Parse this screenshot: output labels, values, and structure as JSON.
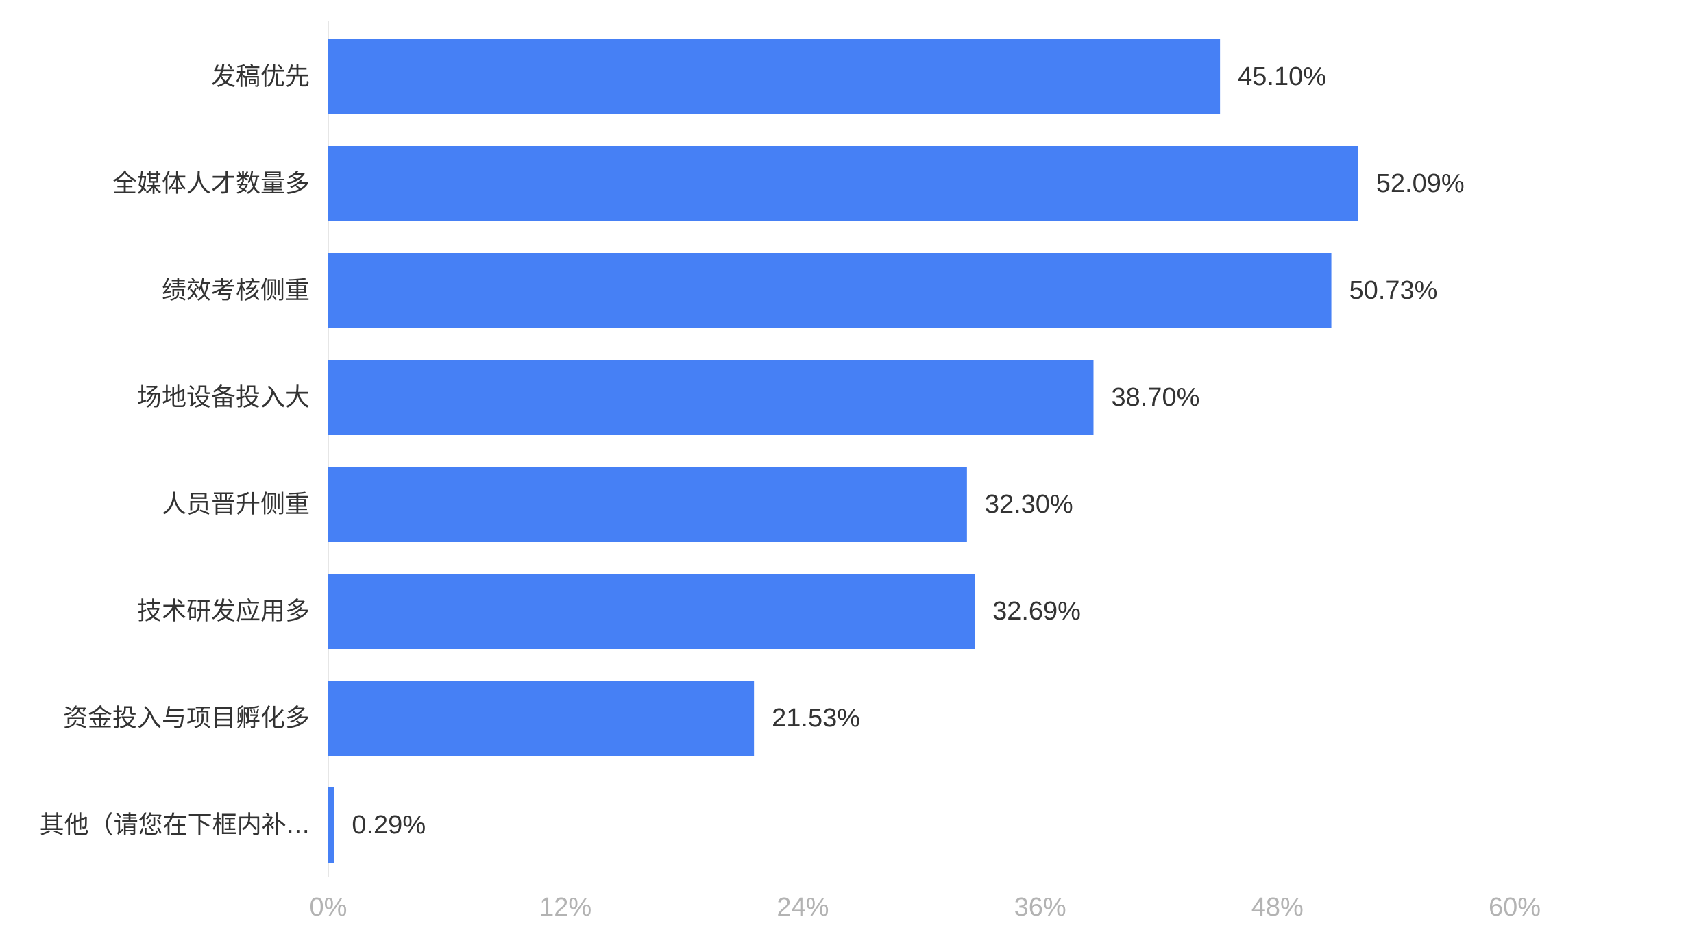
{
  "chart_data": {
    "type": "bar",
    "orientation": "horizontal",
    "categories": [
      "发稿优先",
      "全媒体人才数量多",
      "绩效考核侧重",
      "场地设备投入大",
      "人员晋升侧重",
      "技术研发应用多",
      "资金投入与项目孵化多",
      "其他（请您在下框内补..."
    ],
    "values": [
      45.1,
      52.09,
      50.73,
      38.7,
      32.3,
      32.69,
      21.53,
      0.29
    ],
    "value_labels": [
      "45.10%",
      "52.09%",
      "50.73%",
      "38.70%",
      "32.30%",
      "32.69%",
      "21.53%",
      "0.29%"
    ],
    "xlim": [
      0,
      60
    ],
    "x_ticks": [
      0,
      12,
      24,
      36,
      48,
      60
    ],
    "x_tick_labels": [
      "0%",
      "12%",
      "24%",
      "36%",
      "48%",
      "60%"
    ],
    "grid": false,
    "legend": "none",
    "colors": {
      "bar": "#4680F5",
      "axis_line": "#e6e6e6",
      "category_text": "#333333",
      "value_text": "#333333",
      "tick_text": "#b3b3b3"
    }
  }
}
